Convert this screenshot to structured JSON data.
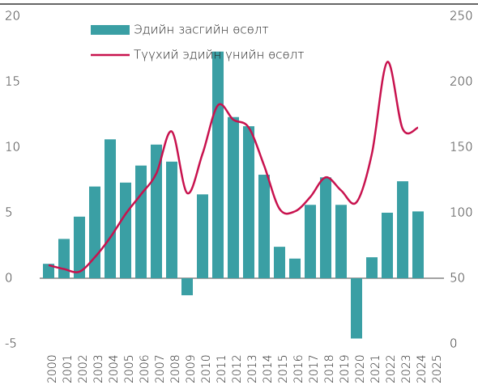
{
  "chart_data": {
    "type": "bar-line",
    "categories": [
      "2000",
      "2001",
      "2002",
      "2003",
      "2004",
      "2005",
      "2006",
      "2007",
      "2008",
      "2009",
      "2010",
      "2011",
      "2012",
      "2013",
      "2014",
      "2015",
      "2016",
      "2017",
      "2018",
      "2019",
      "2020",
      "2021",
      "2022",
      "2023",
      "2024",
      "2025"
    ],
    "series": [
      {
        "name": "Эдийн засгийн өсөлт",
        "type": "bar",
        "color": "#3a9fa4",
        "values": [
          1.1,
          3.0,
          4.7,
          7.0,
          10.6,
          7.3,
          8.6,
          10.2,
          8.9,
          -1.3,
          6.4,
          17.3,
          12.3,
          11.6,
          7.9,
          2.4,
          1.5,
          5.6,
          7.7,
          5.6,
          -4.6,
          1.6,
          5.0,
          7.4,
          5.1,
          null
        ]
      },
      {
        "name": "Түүхий эдийн үнийн өсөлт",
        "type": "line",
        "axis": "y2",
        "color": "#c8124e",
        "values": [
          60,
          57,
          55,
          66,
          81,
          99,
          114,
          130,
          162,
          115,
          145,
          182,
          171,
          165,
          136,
          103,
          101,
          112,
          127,
          117,
          108,
          145,
          215,
          164,
          165,
          null
        ]
      }
    ],
    "ylim": [
      -5,
      20
    ],
    "yticks": [
      -5,
      0,
      5,
      10,
      15,
      20
    ],
    "y2lim": [
      0,
      250
    ],
    "y2ticks": [
      0,
      50,
      100,
      150,
      200,
      250
    ],
    "legend": "top-left"
  }
}
